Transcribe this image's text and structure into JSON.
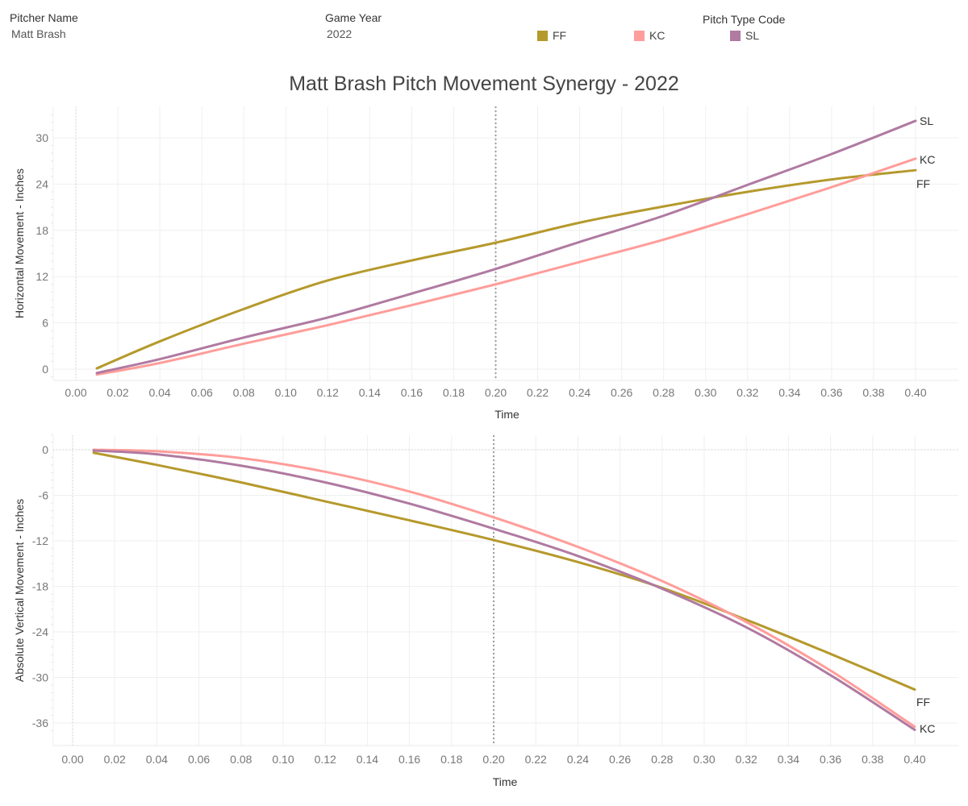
{
  "filters": {
    "pitcher": {
      "title": "Pitcher Name",
      "value": "Matt Brash"
    },
    "year": {
      "title": "Game Year",
      "value": "2022"
    }
  },
  "legend": {
    "title": "Pitch Type Code",
    "items": [
      {
        "code": "FF",
        "color": "#b5992c"
      },
      {
        "code": "KC",
        "color": "#ff9d9a"
      },
      {
        "code": "SL",
        "color": "#b07aa1"
      }
    ]
  },
  "title": "Matt Brash Pitch Movement Synergy - 2022",
  "chart_data": [
    {
      "type": "line",
      "title": "Matt Brash Pitch Movement Synergy - 2022",
      "xlabel": "Time",
      "ylabel": "Horizontal Movement - Inches",
      "xlim": [
        -0.01,
        0.42
      ],
      "ylim": [
        -1.5,
        33.5
      ],
      "xticks": [
        "0.00",
        "0.02",
        "0.04",
        "0.06",
        "0.08",
        "0.10",
        "0.12",
        "0.14",
        "0.16",
        "0.18",
        "0.20",
        "0.22",
        "0.24",
        "0.26",
        "0.28",
        "0.30",
        "0.32",
        "0.34",
        "0.36",
        "0.38",
        "0.40"
      ],
      "yticks": [
        0,
        6,
        12,
        18,
        24,
        30
      ],
      "reference_lines": {
        "x": [
          0.0,
          0.2
        ]
      },
      "grid": true,
      "x": [
        0.01,
        0.04,
        0.08,
        0.12,
        0.16,
        0.2,
        0.24,
        0.28,
        0.32,
        0.36,
        0.4
      ],
      "series": [
        {
          "name": "FF",
          "color": "#b5992c",
          "values": [
            0.1,
            3.6,
            7.8,
            11.5,
            14.1,
            16.4,
            19.0,
            21.1,
            23.0,
            24.6,
            25.8
          ]
        },
        {
          "name": "KC",
          "color": "#ff9d9a",
          "values": [
            -0.7,
            0.8,
            3.3,
            5.7,
            8.3,
            11.0,
            13.9,
            16.8,
            20.1,
            23.6,
            27.3
          ]
        },
        {
          "name": "SL",
          "color": "#b07aa1",
          "values": [
            -0.5,
            1.3,
            4.1,
            6.7,
            9.8,
            13.0,
            16.5,
            19.9,
            23.9,
            27.9,
            32.2
          ]
        }
      ]
    },
    {
      "type": "line",
      "title": "",
      "xlabel": "Time",
      "ylabel": "Absolute Vertical Movement - Inches",
      "xlim": [
        -0.01,
        0.42
      ],
      "ylim": [
        -38.5,
        1.5
      ],
      "xticks": [
        "0.00",
        "0.02",
        "0.04",
        "0.06",
        "0.08",
        "0.10",
        "0.12",
        "0.14",
        "0.16",
        "0.18",
        "0.20",
        "0.22",
        "0.24",
        "0.26",
        "0.28",
        "0.30",
        "0.32",
        "0.34",
        "0.36",
        "0.38",
        "0.40"
      ],
      "yticks": [
        0,
        -6,
        -12,
        -18,
        -24,
        -30,
        -36
      ],
      "reference_lines": {
        "x": [
          0.0,
          0.2
        ],
        "y": [
          0
        ]
      },
      "grid": true,
      "x": [
        0.01,
        0.04,
        0.08,
        0.12,
        0.16,
        0.2,
        0.24,
        0.28,
        0.32,
        0.36,
        0.4
      ],
      "series": [
        {
          "name": "FF",
          "color": "#b5992c",
          "values": [
            -0.4,
            -2.0,
            -4.3,
            -6.8,
            -9.3,
            -11.9,
            -14.8,
            -18.2,
            -22.4,
            -26.9,
            -31.6
          ]
        },
        {
          "name": "KC",
          "color": "#ff9d9a",
          "values": [
            0.0,
            -0.2,
            -1.1,
            -2.9,
            -5.5,
            -8.9,
            -12.8,
            -17.3,
            -22.7,
            -29.1,
            -36.5
          ]
        },
        {
          "name": "SL",
          "color": "#b07aa1",
          "values": [
            -0.1,
            -0.6,
            -2.1,
            -4.3,
            -7.1,
            -10.4,
            -14.0,
            -18.3,
            -23.4,
            -29.7,
            -36.9
          ]
        }
      ]
    }
  ]
}
